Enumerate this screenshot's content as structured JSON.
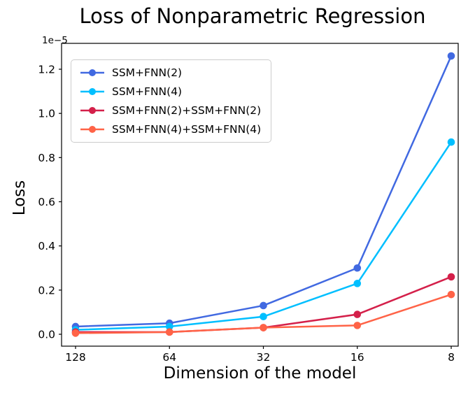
{
  "chart_data": {
    "type": "line",
    "title": "Loss of Nonparametric Regression",
    "xlabel": "Dimension of the model",
    "ylabel": "Loss",
    "y_offset_label": "1e−5",
    "categories": [
      "128",
      "64",
      "32",
      "16",
      "8"
    ],
    "yticks": [
      0.0,
      0.2,
      0.4,
      0.6,
      0.8,
      1.0,
      1.2
    ],
    "ylim": [
      -0.054,
      1.317
    ],
    "grid": false,
    "legend_position": "upper left",
    "series": [
      {
        "name": "SSM+FNN(2)",
        "color": "#4169e1",
        "values": [
          0.035,
          0.05,
          0.13,
          0.3,
          1.26
        ]
      },
      {
        "name": "SSM+FNN(4)",
        "color": "#00bfff",
        "values": [
          0.02,
          0.035,
          0.08,
          0.23,
          0.87
        ]
      },
      {
        "name": "SSM+FNN(2)+SSM+FNN(2)",
        "color": "#d4204a",
        "values": [
          0.01,
          0.01,
          0.03,
          0.09,
          0.26
        ]
      },
      {
        "name": "SSM+FNN(4)+SSM+FNN(4)",
        "color": "#ff6347",
        "values": [
          0.005,
          0.01,
          0.03,
          0.04,
          0.18
        ]
      }
    ]
  }
}
